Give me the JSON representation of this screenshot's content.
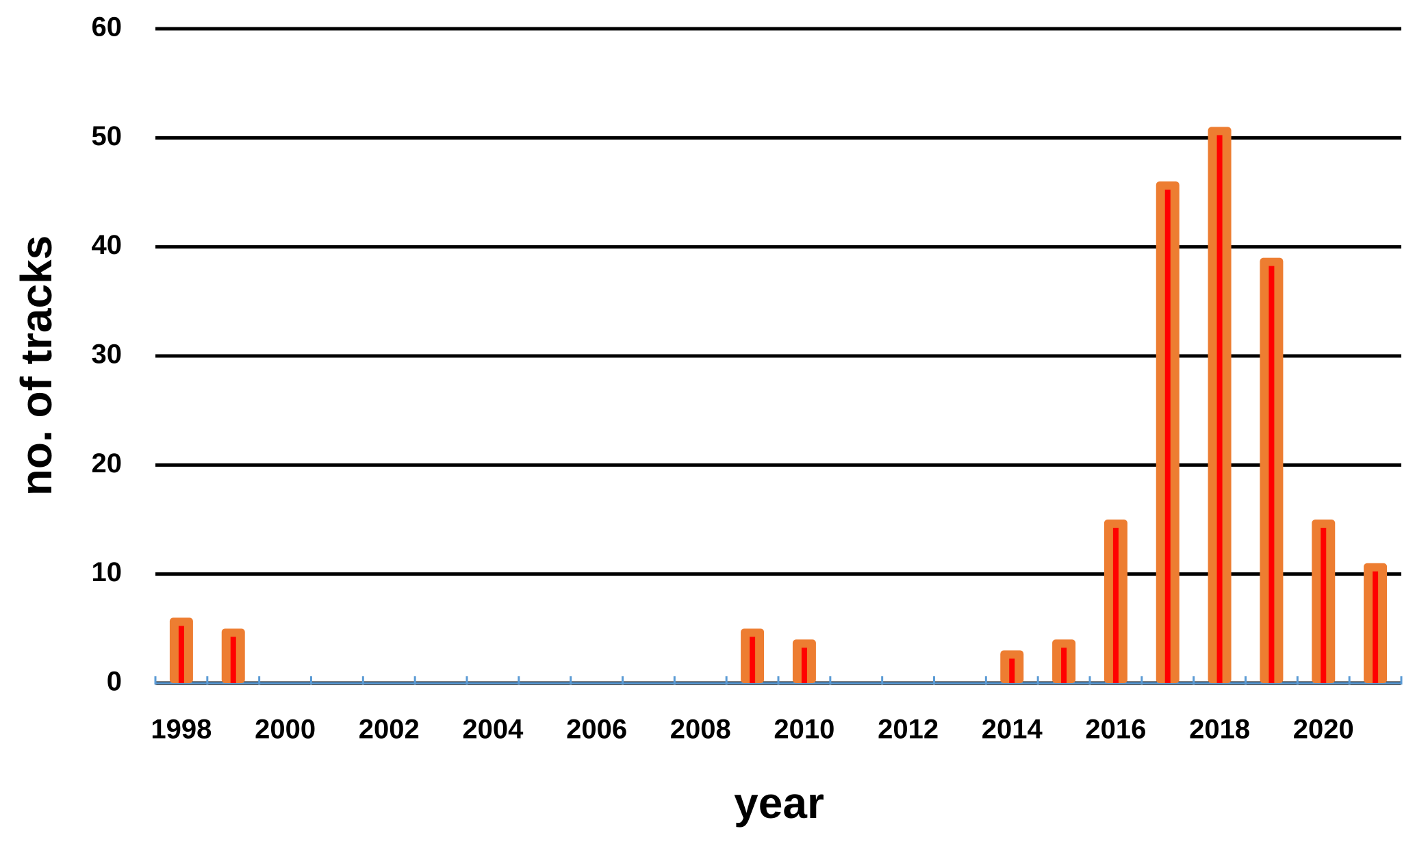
{
  "chart_data": {
    "type": "bar",
    "x_label": "year",
    "y_label": "no. of tracks",
    "categories": [
      "1998",
      null,
      "2000",
      null,
      "2002",
      null,
      "2004",
      null,
      "2006",
      null,
      "2008",
      null,
      "2010",
      null,
      "2012",
      null,
      "2014",
      null,
      "2016",
      null,
      "2018",
      null,
      "2020",
      null
    ],
    "values": [
      6,
      5,
      0,
      0,
      0,
      0,
      0,
      0,
      0,
      0,
      0,
      5,
      4,
      0,
      0,
      0,
      3,
      4,
      15,
      46,
      51,
      39,
      15,
      11
    ],
    "color": "#ed7d31",
    "inner_color": "#ff0000",
    "axis_color": "#5b9bd5",
    "ylim": [
      0,
      60
    ],
    "yticks": [
      0,
      10,
      20,
      30,
      40,
      50,
      60
    ],
    "grid": true
  }
}
